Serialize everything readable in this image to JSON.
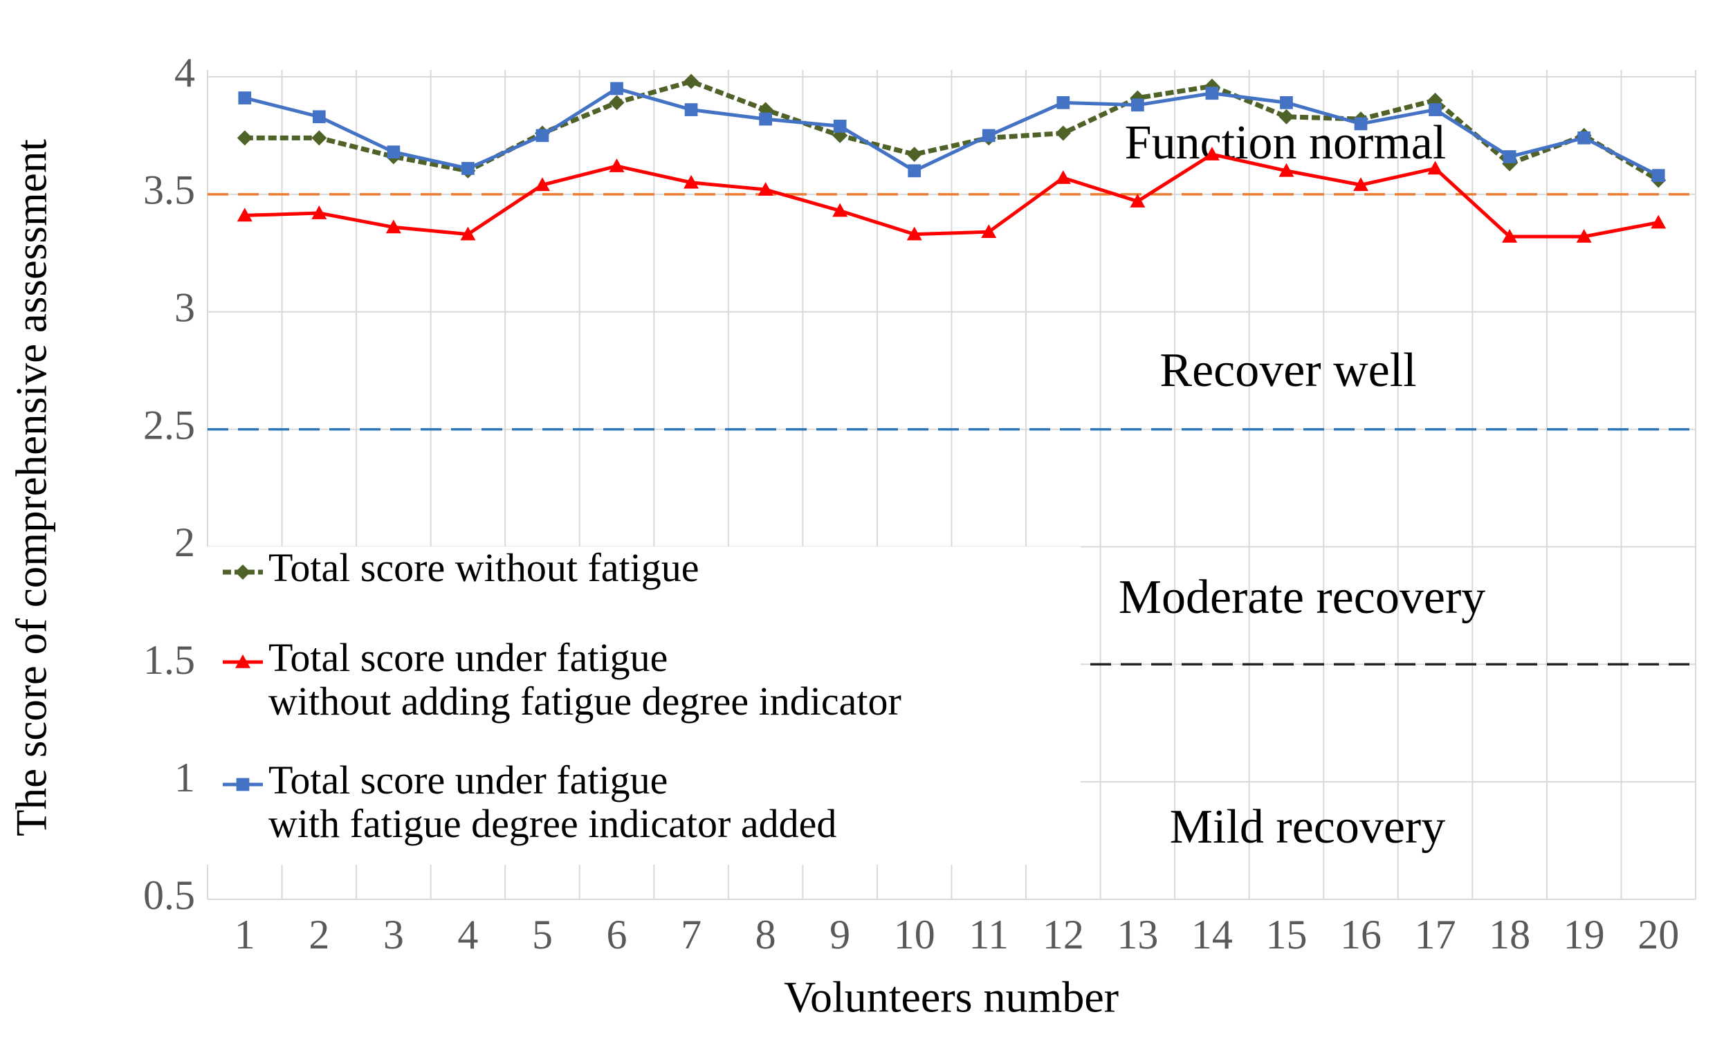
{
  "chart_data": {
    "type": "line",
    "x_label": "Volunteers number",
    "y_label": "The score of comprehensive assessment",
    "categories": [
      "1",
      "2",
      "3",
      "4",
      "5",
      "6",
      "7",
      "8",
      "9",
      "10",
      "11",
      "12",
      "13",
      "14",
      "15",
      "16",
      "17",
      "18",
      "19",
      "20"
    ],
    "series": [
      {
        "name": "Total score without fatigue",
        "color": "#4f6228",
        "marker": "diamond",
        "dashed": true,
        "values": [
          3.74,
          3.74,
          3.66,
          3.6,
          3.76,
          3.89,
          3.98,
          3.86,
          3.75,
          3.67,
          3.74,
          3.76,
          3.91,
          3.96,
          3.83,
          3.82,
          3.9,
          3.63,
          3.75,
          3.56
        ]
      },
      {
        "name": "Total score under fatigue\nwithout adding fatigue degree indicator",
        "color": "#ff0000",
        "marker": "triangle",
        "dashed": false,
        "values": [
          3.41,
          3.42,
          3.36,
          3.33,
          3.54,
          3.62,
          3.55,
          3.52,
          3.43,
          3.33,
          3.34,
          3.57,
          3.47,
          3.67,
          3.6,
          3.54,
          3.61,
          3.32,
          3.32,
          3.38
        ]
      },
      {
        "name": "Total score under fatigue\nwith fatigue degree indicator added",
        "color": "#4472c4",
        "marker": "square",
        "dashed": false,
        "values": [
          3.91,
          3.83,
          3.68,
          3.61,
          3.75,
          3.95,
          3.86,
          3.82,
          3.79,
          3.6,
          3.75,
          3.89,
          3.88,
          3.93,
          3.89,
          3.8,
          3.86,
          3.66,
          3.74,
          3.58
        ]
      }
    ],
    "thresholds": [
      {
        "value": 3.5,
        "color": "#ed7d31"
      },
      {
        "value": 2.5,
        "color": "#2e75b6"
      },
      {
        "value": 1.5,
        "color": "#222222"
      }
    ],
    "regions": [
      "Function normal",
      "Recover well",
      "Moderate recovery",
      "Mild recovery"
    ],
    "ylim": [
      0.5,
      4
    ],
    "yticks": [
      0.5,
      1,
      1.5,
      2,
      2.5,
      3,
      3.5,
      4
    ],
    "grid": true,
    "legend": "left"
  }
}
